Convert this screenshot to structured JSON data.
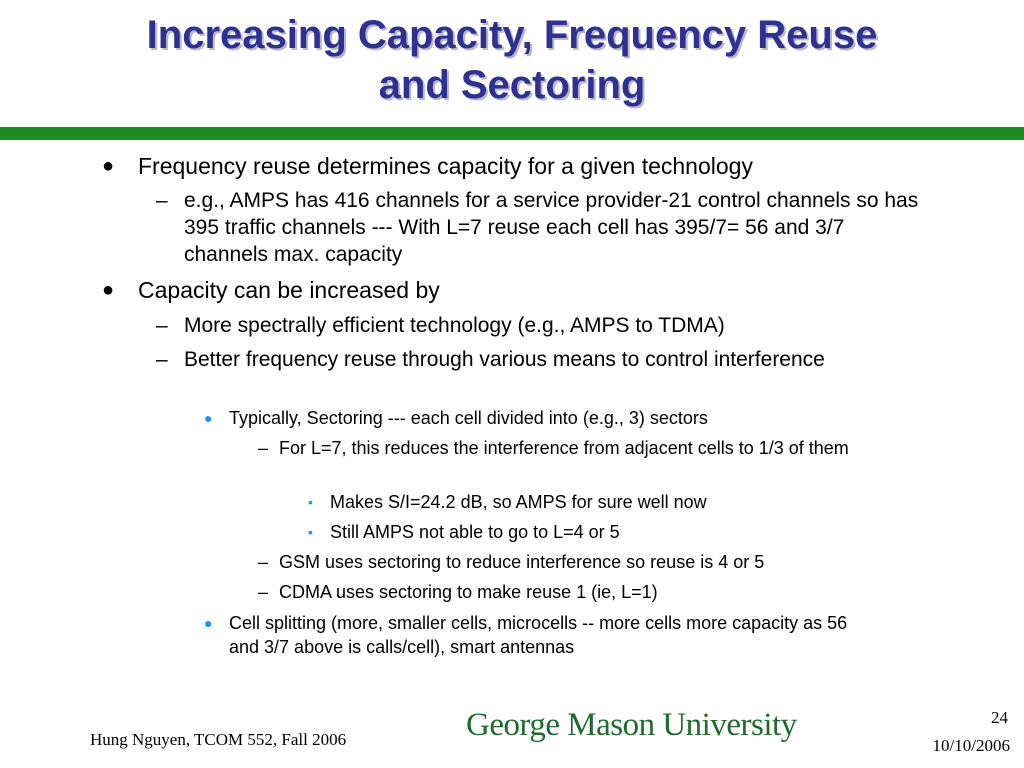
{
  "slide": {
    "title_line1": "Increasing Capacity, Frequency Reuse",
    "title_line2": "and Sectoring"
  },
  "bullets": {
    "b1": "Frequency reuse determines capacity for a given technology",
    "b1_1": "e.g., AMPS has 416 channels for a service provider-21 control channels so has 395 traffic channels --- With L=7 reuse each cell has 395/7=  56 and 3/7 channels max. capacity",
    "b2": "Capacity can be increased by",
    "b2_1": "More spectrally efficient technology (e.g., AMPS to TDMA)",
    "b2_2": "Better frequency reuse through various means to control interference",
    "b2_2_1": "Typically, Sectoring --- each cell divided into (e.g., 3) sectors",
    "b2_2_1_1": "For L=7, this reduces the interference from adjacent cells to 1/3 of them",
    "b2_2_1_1_1": "Makes S/I=24.2 dB, so AMPS for sure well now",
    "b2_2_1_1_2": "Still AMPS not able to go to L=4 or 5",
    "b2_2_1_2": "GSM uses sectoring to reduce interference so reuse is 4 or 5",
    "b2_2_1_3": "CDMA uses sectoring to make reuse 1 (ie, L=1)",
    "b2_2_2": "Cell splitting (more, smaller cells, microcells -- more cells more capacity as 56 and 3/7 above is calls/cell), smart antennas"
  },
  "markers": {
    "round": "●",
    "dash": "–",
    "small_round": "●",
    "small_dot": "•"
  },
  "footer": {
    "author": "Hung Nguyen, TCOM 552, Fall 2006",
    "logo": "George Mason University",
    "page_number": "24",
    "date": "10/10/2006"
  },
  "colors": {
    "title": "#2e3192",
    "rule": "#1f8c1f",
    "sub_bullet": "#1e90ff",
    "logo": "#1f6b2f"
  }
}
